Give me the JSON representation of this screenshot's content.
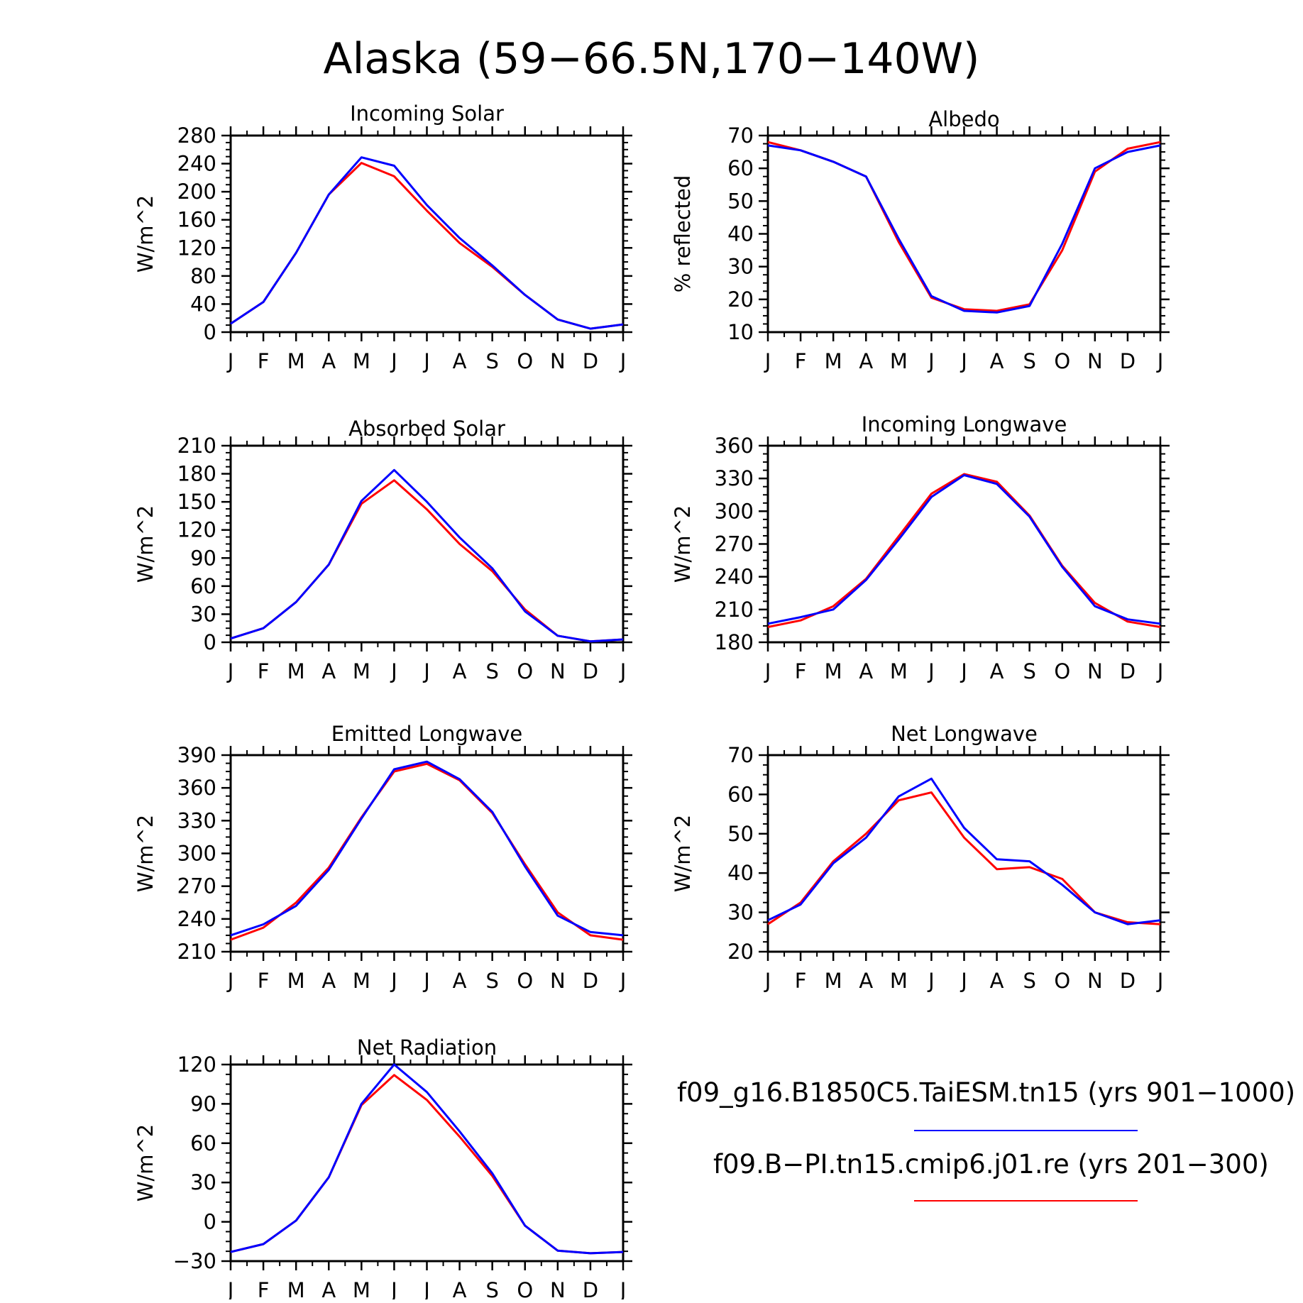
{
  "figure": {
    "title": "Alaska (59−66.5N,170−140W)"
  },
  "legend": {
    "entries": [
      {
        "label": "f09_g16.B1850C5.TaiESM.tn15 (yrs 901−1000)",
        "color": "#0000ff"
      },
      {
        "label": "f09.B−PI.tn15.cmip6.j01.re (yrs 201−300)",
        "color": "#ff0000"
      }
    ]
  },
  "colors": {
    "series_blue": "#0000ff",
    "series_red": "#ff0000",
    "axis": "#000000"
  },
  "chart_data": [
    {
      "type": "line",
      "title": "Incoming Solar",
      "ylabel": "W/m^2",
      "xlabel": "",
      "categories": [
        "J",
        "F",
        "M",
        "A",
        "M",
        "J",
        "J",
        "A",
        "S",
        "O",
        "N",
        "D",
        "J"
      ],
      "ylim": [
        0,
        280
      ],
      "yticks": [
        0,
        40,
        80,
        120,
        160,
        200,
        240,
        280
      ],
      "series": [
        {
          "color": "#ff0000",
          "values": [
            12,
            43,
            113,
            196,
            241,
            222,
            173,
            127,
            93,
            53,
            18,
            5,
            11
          ]
        },
        {
          "color": "#0000ff",
          "values": [
            12,
            43,
            113,
            196,
            249,
            237,
            181,
            134,
            95,
            53,
            18,
            5,
            11
          ]
        }
      ]
    },
    {
      "type": "line",
      "title": "Albedo",
      "ylabel": "% reflected",
      "xlabel": "",
      "categories": [
        "J",
        "F",
        "M",
        "A",
        "M",
        "J",
        "J",
        "A",
        "S",
        "O",
        "N",
        "D",
        "J"
      ],
      "ylim": [
        10,
        70
      ],
      "yticks": [
        10,
        20,
        30,
        40,
        50,
        60,
        70
      ],
      "series": [
        {
          "color": "#ff0000",
          "values": [
            68,
            65.5,
            62,
            57.5,
            37.5,
            20.5,
            17,
            16.5,
            18.5,
            35,
            59,
            66,
            68
          ]
        },
        {
          "color": "#0000ff",
          "values": [
            67,
            65.5,
            62,
            57.5,
            38.5,
            21,
            16.5,
            16,
            18,
            37,
            60,
            65,
            67
          ]
        }
      ]
    },
    {
      "type": "line",
      "title": "Absorbed Solar",
      "ylabel": "W/m^2",
      "xlabel": "",
      "categories": [
        "J",
        "F",
        "M",
        "A",
        "M",
        "J",
        "J",
        "A",
        "S",
        "O",
        "N",
        "D",
        "J"
      ],
      "ylim": [
        0,
        210
      ],
      "yticks": [
        0,
        30,
        60,
        90,
        120,
        150,
        180,
        210
      ],
      "series": [
        {
          "color": "#ff0000",
          "values": [
            4,
            15,
            43,
            83,
            148,
            173,
            142,
            105,
            76,
            35,
            7,
            1,
            3
          ]
        },
        {
          "color": "#0000ff",
          "values": [
            4,
            15,
            43,
            83,
            151,
            184,
            150,
            112,
            79,
            33,
            7,
            1,
            3
          ]
        }
      ]
    },
    {
      "type": "line",
      "title": "Incoming Longwave",
      "ylabel": "W/m^2",
      "xlabel": "",
      "categories": [
        "J",
        "F",
        "M",
        "A",
        "M",
        "J",
        "J",
        "A",
        "S",
        "O",
        "N",
        "D",
        "J"
      ],
      "ylim": [
        180,
        360
      ],
      "yticks": [
        180,
        210,
        240,
        270,
        300,
        330,
        360
      ],
      "series": [
        {
          "color": "#ff0000",
          "values": [
            194,
            200,
            213,
            238,
            277,
            316,
            334,
            327,
            296,
            250,
            216,
            199,
            194
          ]
        },
        {
          "color": "#0000ff",
          "values": [
            197,
            203,
            210,
            237,
            274,
            313,
            333,
            325,
            295,
            249,
            213,
            201,
            197
          ]
        }
      ]
    },
    {
      "type": "line",
      "title": "Emitted Longwave",
      "ylabel": "W/m^2",
      "xlabel": "",
      "categories": [
        "J",
        "F",
        "M",
        "A",
        "M",
        "J",
        "J",
        "A",
        "S",
        "O",
        "N",
        "D",
        "J"
      ],
      "ylim": [
        210,
        390
      ],
      "yticks": [
        210,
        240,
        270,
        300,
        330,
        360,
        390
      ],
      "series": [
        {
          "color": "#ff0000",
          "values": [
            221,
            232,
            255,
            287,
            333,
            375,
            382,
            367,
            337,
            290,
            246,
            225,
            221
          ]
        },
        {
          "color": "#0000ff",
          "values": [
            225,
            235,
            252,
            285,
            332,
            377,
            384,
            368,
            338,
            288,
            243,
            228,
            225
          ]
        }
      ]
    },
    {
      "type": "line",
      "title": "Net Longwave",
      "ylabel": "W/m^2",
      "xlabel": "",
      "categories": [
        "J",
        "F",
        "M",
        "A",
        "M",
        "J",
        "J",
        "A",
        "S",
        "O",
        "N",
        "D",
        "J"
      ],
      "ylim": [
        20,
        70
      ],
      "yticks": [
        20,
        30,
        40,
        50,
        60,
        70
      ],
      "series": [
        {
          "color": "#ff0000",
          "values": [
            27,
            32.5,
            43,
            50,
            58.5,
            60.5,
            49,
            41,
            41.5,
            38.5,
            30,
            27.5,
            27
          ]
        },
        {
          "color": "#0000ff",
          "values": [
            28,
            32,
            42.5,
            49,
            59.5,
            64,
            51.5,
            43.5,
            43,
            37,
            30,
            27,
            28
          ]
        }
      ]
    },
    {
      "type": "line",
      "title": "Net Radiation",
      "ylabel": "W/m^2",
      "xlabel": "",
      "categories": [
        "J",
        "F",
        "M",
        "A",
        "M",
        "J",
        "J",
        "A",
        "S",
        "O",
        "N",
        "D",
        "J"
      ],
      "ylim": [
        -30,
        120
      ],
      "yticks": [
        -30,
        0,
        30,
        60,
        90,
        120
      ],
      "series": [
        {
          "color": "#ff0000",
          "values": [
            -23,
            -17,
            1,
            34,
            89,
            112,
            93,
            65,
            35,
            -3,
            -22,
            -24,
            -23
          ]
        },
        {
          "color": "#0000ff",
          "values": [
            -23,
            -17,
            1,
            34,
            90,
            120,
            99,
            69,
            37,
            -3,
            -22,
            -24,
            -23
          ]
        }
      ]
    }
  ]
}
